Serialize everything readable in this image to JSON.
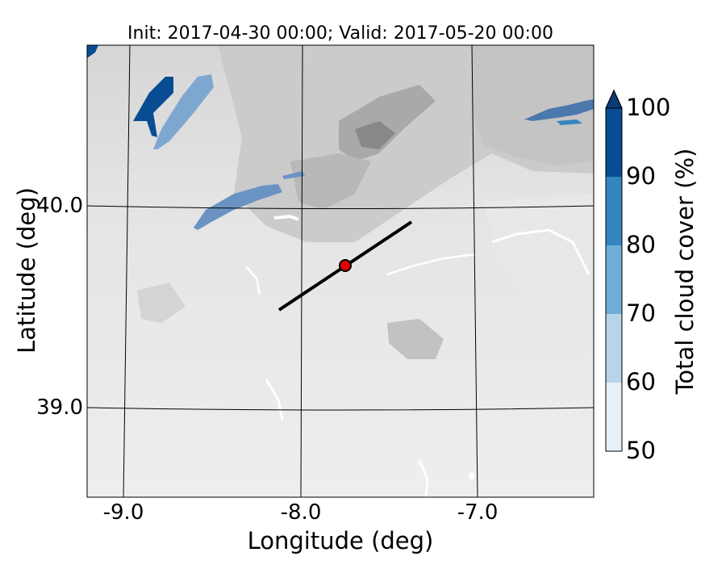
{
  "title": "Init: 2017-04-30 00:00; Valid: 2017-05-20 00:00",
  "x_axis": {
    "label": "Longitude (deg)",
    "ticks": [
      {
        "label": "-9.0",
        "value": -9.0
      },
      {
        "label": "-8.0",
        "value": -8.0
      },
      {
        "label": "-7.0",
        "value": -7.0
      }
    ]
  },
  "y_axis": {
    "label": "Latitude (deg)",
    "ticks": [
      {
        "label": "40.0",
        "value": 40.0
      },
      {
        "label": "39.0",
        "value": 39.0
      }
    ]
  },
  "colorbar": {
    "label": "Total cloud cover (%)",
    "extend": "max",
    "levels": [
      {
        "label": "50",
        "value": 50,
        "color": "#e6f0f9"
      },
      {
        "label": "60",
        "value": 60,
        "color": "#b8d4ea"
      },
      {
        "label": "70",
        "value": 70,
        "color": "#6faed8"
      },
      {
        "label": "80",
        "value": 80,
        "color": "#3585c0"
      },
      {
        "label": "90",
        "value": 90,
        "color": "#084c93"
      },
      {
        "label": "100",
        "value": 100,
        "color": "#0b3a78"
      }
    ]
  },
  "map": {
    "background": "terrain-grayscale",
    "gridlines": true,
    "marker": {
      "color": "#e00000",
      "edge": "#000000"
    },
    "transect": {
      "color": "#000000"
    }
  }
}
